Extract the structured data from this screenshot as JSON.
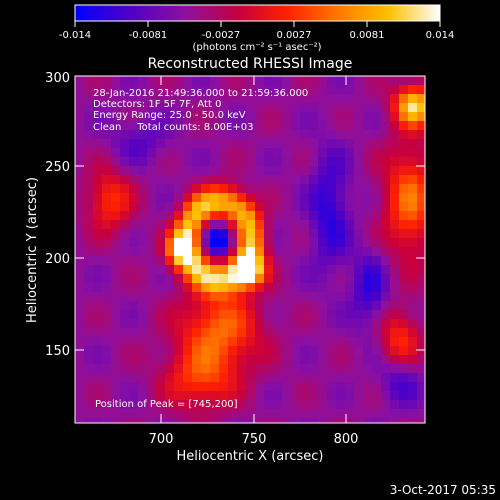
{
  "colorbar": {
    "tick_labels": [
      "-0.014",
      "-0.0081",
      "-0.0027",
      "0.0027",
      "0.0081",
      "0.014"
    ],
    "unit_label": "(photons cm⁻² s⁻¹ asec⁻²)",
    "colors": [
      "#0000ff",
      "#4b00c8",
      "#8c10a0",
      "#c8003c",
      "#ff2000",
      "#ff7800",
      "#ffc000",
      "#ffffff"
    ]
  },
  "plot": {
    "title": "Reconstructed RHESSI Image",
    "xlabel": "Heliocentric X (arcsec)",
    "ylabel": "Heliocentric Y (arcsec)",
    "x_ticks": [
      "700",
      "750",
      "800"
    ],
    "y_ticks": [
      "150",
      "200",
      "250",
      "300"
    ],
    "info_lines": [
      "28-Jan-2016 21:49:36.000 to 21:59:36.000",
      "Detectors: 1F 5F 7F, Att 0",
      "Energy Range: 25.0 - 50.0 keV",
      "Clean     Total counts: 8.00E+03"
    ],
    "peak_label": "Position of Peak = [745,200]"
  },
  "footer": {
    "timestamp": "3-Oct-2017 05:35"
  }
}
